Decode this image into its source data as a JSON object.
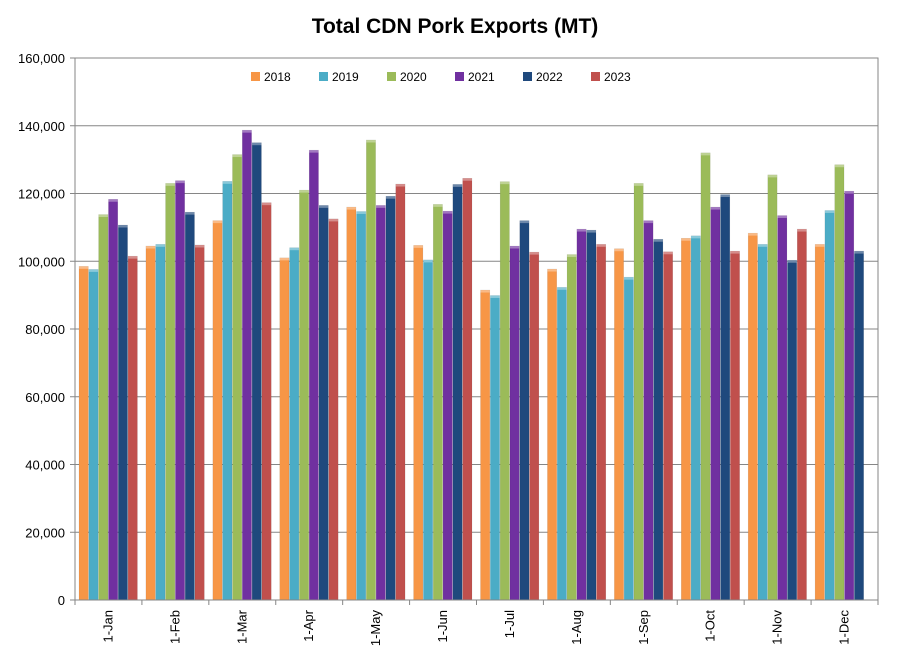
{
  "chart_data": {
    "type": "bar",
    "title": "Total CDN Pork Exports (MT)",
    "xlabel": "",
    "ylabel": "",
    "ylim": [
      0,
      160000
    ],
    "yticks": [
      0,
      20000,
      40000,
      60000,
      80000,
      100000,
      120000,
      140000,
      160000
    ],
    "ytick_labels": [
      "0",
      "20,000",
      "40,000",
      "60,000",
      "80,000",
      "100,000",
      "120,000",
      "140,000",
      "160,000"
    ],
    "grid": true,
    "legend_position": "top",
    "categories": [
      "1-Jan",
      "1-Feb",
      "1-Mar",
      "1-Apr",
      "1-May",
      "1-Jun",
      "1-Jul",
      "1-Aug",
      "1-Sep",
      "1-Oct",
      "1-Nov",
      "1-Dec"
    ],
    "series": [
      {
        "name": "2018",
        "color": "#f79646",
        "values": [
          98500,
          104500,
          112000,
          101000,
          116000,
          104700,
          91500,
          97700,
          103700,
          106800,
          108300,
          105000
        ]
      },
      {
        "name": "2019",
        "color": "#4bacc6",
        "values": [
          97600,
          105000,
          123600,
          104000,
          114700,
          100400,
          89900,
          92300,
          95300,
          107500,
          105000,
          115000
        ]
      },
      {
        "name": "2020",
        "color": "#9bbb59",
        "values": [
          113800,
          123000,
          131500,
          121000,
          135800,
          116800,
          123500,
          102000,
          123000,
          132000,
          125500,
          128500
        ]
      },
      {
        "name": "2021",
        "color": "#7030a0",
        "values": [
          118300,
          123800,
          138700,
          132800,
          116500,
          114800,
          104500,
          109500,
          112000,
          116000,
          113500,
          120700
        ]
      },
      {
        "name": "2022",
        "color": "#1f497d",
        "values": [
          110700,
          114500,
          135000,
          116500,
          119200,
          122700,
          112000,
          109200,
          106500,
          119700,
          100300,
          103000
        ]
      },
      {
        "name": "2023",
        "color": "#c0504d",
        "values": [
          101500,
          104800,
          117300,
          112500,
          122800,
          124500,
          102700,
          105000,
          102800,
          103000,
          109500,
          null
        ]
      }
    ]
  }
}
